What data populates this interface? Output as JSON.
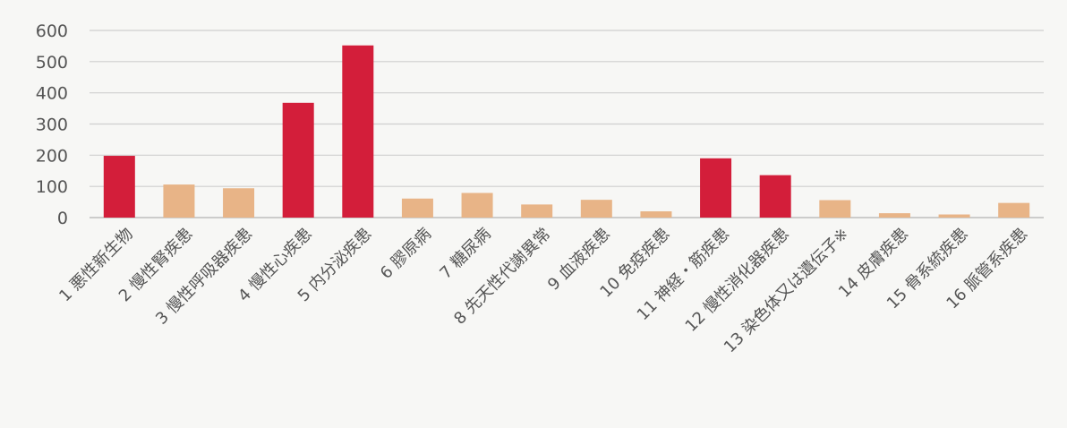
{
  "chart_data": {
    "type": "bar",
    "title": "",
    "xlabel": "",
    "ylabel": "",
    "ylim": [
      0,
      600
    ],
    "yticks": [
      0,
      100,
      200,
      300,
      400,
      500,
      600
    ],
    "grid": true,
    "categories": [
      "1 悪性新生物",
      "2 慢性腎疾患",
      "3 慢性呼吸器疾患",
      "4 慢性心疾患",
      "5 内分泌疾患",
      "6 膠原病",
      "7 糖尿病",
      "8 先天性代謝異常",
      "9 血液疾患",
      "10 免疫疾患",
      "11 神経・筋疾患",
      "12 慢性消化器疾患",
      "13 染色体又は遺伝子※",
      "14 皮膚疾患",
      "15 骨系統疾患",
      "16 脈管系疾患"
    ],
    "values": [
      198,
      106,
      94,
      368,
      552,
      61,
      79,
      42,
      57,
      20,
      190,
      136,
      56,
      14,
      10,
      47
    ],
    "highlight": [
      true,
      false,
      false,
      true,
      true,
      false,
      false,
      false,
      false,
      false,
      true,
      true,
      false,
      false,
      false,
      false
    ],
    "colors": {
      "highlight": "#d31e3a",
      "normal": "#e8b487"
    }
  }
}
